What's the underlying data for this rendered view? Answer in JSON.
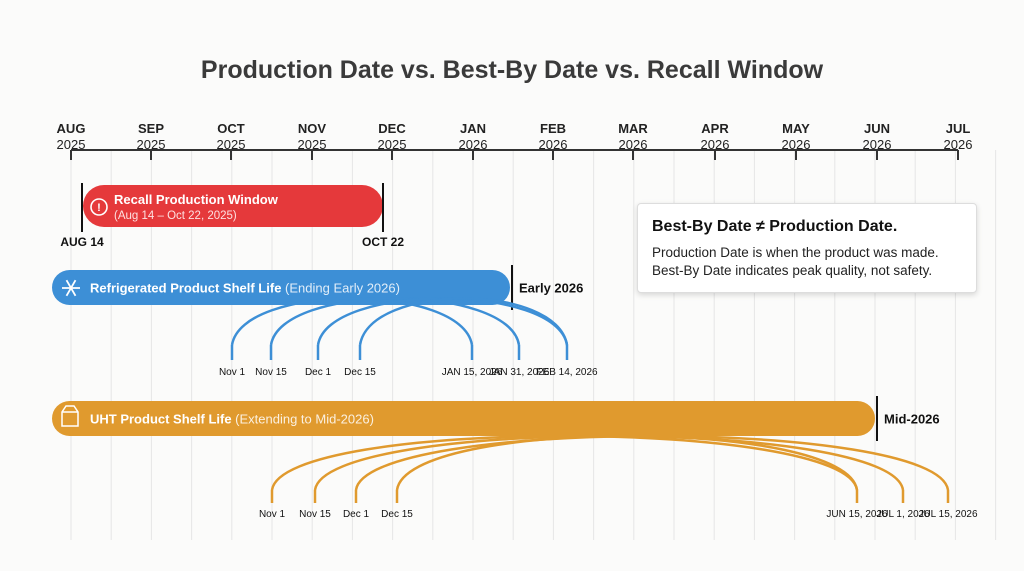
{
  "title": "Production Date vs. Best-By Date vs. Recall Window",
  "axis": {
    "months": [
      [
        "AUG",
        "2025"
      ],
      [
        "SEP",
        "2025"
      ],
      [
        "OCT",
        "2025"
      ],
      [
        "NOV",
        "2025"
      ],
      [
        "DEC",
        "2025"
      ],
      [
        "JAN",
        "2026"
      ],
      [
        "FEB",
        "2026"
      ],
      [
        "MAR",
        "2026"
      ],
      [
        "APR",
        "2026"
      ],
      [
        "MAY",
        "2026"
      ],
      [
        "JUN",
        "2026"
      ],
      [
        "JUL",
        "2026"
      ]
    ]
  },
  "recall": {
    "title": "Recall Production Window",
    "subtitle": "(Aug 14 – Oct 22, 2025)",
    "start_label": "AUG 14",
    "end_label": "OCT 22",
    "color": "#e5393b",
    "icon": "alert-circle-icon"
  },
  "refrigerated": {
    "title": "Refrigerated Product Shelf Life",
    "subtitle": "(Ending Early 2026)",
    "end_label": "Early 2026",
    "color": "#3d8fd6",
    "icon": "snowflake-icon",
    "production_dates": [
      "Nov 1",
      "Nov 15",
      "Dec 1",
      "Dec 15"
    ],
    "best_by_dates": [
      "JAN 15, 2026",
      "JAN 31, 2026",
      "FEB 14, 2026"
    ]
  },
  "uht": {
    "title": "UHT Product Shelf Life",
    "subtitle": "(Extending to Mid-2026)",
    "end_label": "Mid-2026",
    "color": "#e09a2e",
    "icon": "milk-carton-icon",
    "production_dates": [
      "Nov 1",
      "Nov 15",
      "Dec 1",
      "Dec 15"
    ],
    "best_by_dates": [
      "JUN 15, 2026",
      "JUL 1, 2026",
      "JUL 15, 2026"
    ]
  },
  "note": {
    "heading": "Best-By Date ≠ Production Date.",
    "line1": "Production Date is when the product was made.",
    "line2": "Best-By Date indicates peak quality, not safety."
  }
}
